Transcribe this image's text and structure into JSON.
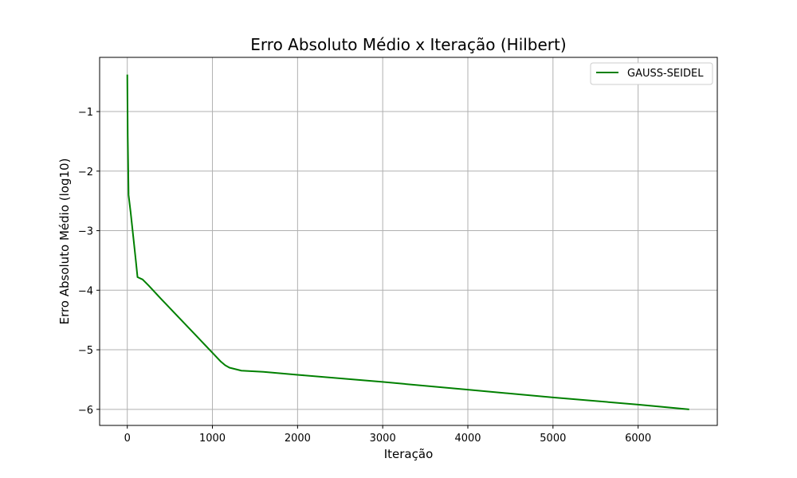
{
  "chart_data": {
    "type": "line",
    "title": "Erro Absoluto Médio x Iteração (Hilbert)",
    "xlabel": "Iteração",
    "ylabel": "Erro Absoluto Médio (log10)",
    "xlim": [
      -325,
      6930
    ],
    "ylim": [
      -6.27,
      -0.09
    ],
    "xticks": [
      0,
      1000,
      2000,
      3000,
      4000,
      5000,
      6000
    ],
    "xtick_labels": [
      "0",
      "1000",
      "2000",
      "3000",
      "4000",
      "5000",
      "6000"
    ],
    "yticks": [
      -1,
      -2,
      -3,
      -4,
      -5,
      -6
    ],
    "ytick_labels": [
      "−1",
      "−2",
      "−3",
      "−4",
      "−5",
      "−6"
    ],
    "grid": true,
    "legend": "top-right",
    "series": [
      {
        "name": "GAUSS-SEIDEL",
        "color": "#008000",
        "x": [
          0,
          5,
          15,
          40,
          70,
          100,
          120,
          180,
          250,
          400,
          600,
          800,
          1000,
          1100,
          1150,
          1200,
          1340,
          1600,
          2000,
          3000,
          4000,
          5000,
          6000,
          6600
        ],
        "y": [
          -0.38,
          -1.4,
          -2.4,
          -2.7,
          -3.1,
          -3.5,
          -3.78,
          -3.82,
          -3.92,
          -4.15,
          -4.45,
          -4.75,
          -5.05,
          -5.2,
          -5.26,
          -5.3,
          -5.35,
          -5.37,
          -5.42,
          -5.54,
          -5.67,
          -5.8,
          -5.92,
          -6.0
        ]
      }
    ]
  }
}
